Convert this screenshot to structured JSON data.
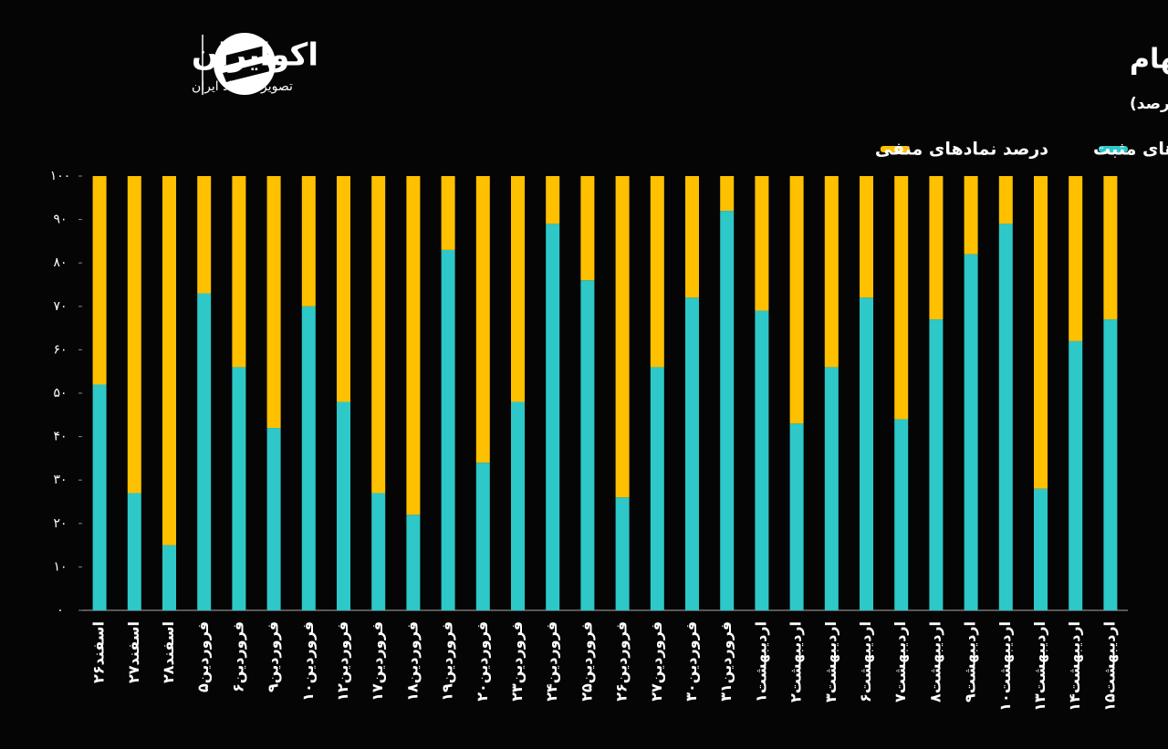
{
  "chart_data": {
    "type": "stacked_bar",
    "title": "روند نمادهای مثبت و منفی معاملات روزانه سهام",
    "subtitle": "(واحد: درصد)",
    "brand": {
      "name": "اکوایران",
      "tagline": "تصویر اقتصاد ایران"
    },
    "categories": [
      "اسفند۲۶",
      "اسفند۲۷",
      "اسفند۲۸",
      "فروردین۵",
      "فروردین۶",
      "فروردین۹",
      "فروردین۱۰",
      "فروردین۱۲",
      "فروردین۱۷",
      "فروردین۱۸",
      "فروردین۱۹",
      "فروردین۲۰",
      "فروردین۲۳",
      "فروردین۲۴",
      "فروردین۲۵",
      "فروردین۲۶",
      "فروردین۲۷",
      "فروردین۳۰",
      "فروردین۳۱",
      "اردیبهشت۱",
      "اردیبهشت۲",
      "اردیبهشت۳",
      "اردیبهشت۶",
      "اردیبهشت۷",
      "اردیبهشت۸",
      "اردیبهشت۹",
      "اردیبهشت۱۰",
      "اردیبهشت۱۳",
      "اردیبهشت۱۴",
      "اردیبهشت۱۵"
    ],
    "series": [
      {
        "name": "درصد نمادهای مثبت",
        "color": "#2ec8c8",
        "values": [
          52,
          27,
          15,
          73,
          56,
          42,
          70,
          48,
          27,
          22,
          83,
          34,
          48,
          89,
          76,
          26,
          56,
          72,
          92,
          69,
          43,
          56,
          72,
          44,
          67,
          82,
          89,
          28,
          62,
          67
        ]
      },
      {
        "name": "درصد نمادهای منفی",
        "color": "#ffc000",
        "values": [
          48,
          73,
          85,
          27,
          44,
          58,
          30,
          52,
          73,
          78,
          17,
          66,
          52,
          11,
          24,
          74,
          44,
          28,
          8,
          31,
          57,
          44,
          28,
          56,
          33,
          18,
          11,
          72,
          38,
          33
        ]
      }
    ],
    "ylim": [
      0,
      100
    ],
    "yticks": [
      {
        "value": 0,
        "label": "۰"
      },
      {
        "value": 10,
        "label": "۱۰"
      },
      {
        "value": 20,
        "label": "۲۰"
      },
      {
        "value": 30,
        "label": "۳۰"
      },
      {
        "value": 40,
        "label": "۴۰"
      },
      {
        "value": 50,
        "label": "۵۰"
      },
      {
        "value": 60,
        "label": "۶۰"
      },
      {
        "value": 70,
        "label": "۷۰"
      },
      {
        "value": 80,
        "label": "۸۰"
      },
      {
        "value": 90,
        "label": "۹۰"
      },
      {
        "value": 100,
        "label": "۱۰۰"
      }
    ],
    "legend": "top-right"
  }
}
